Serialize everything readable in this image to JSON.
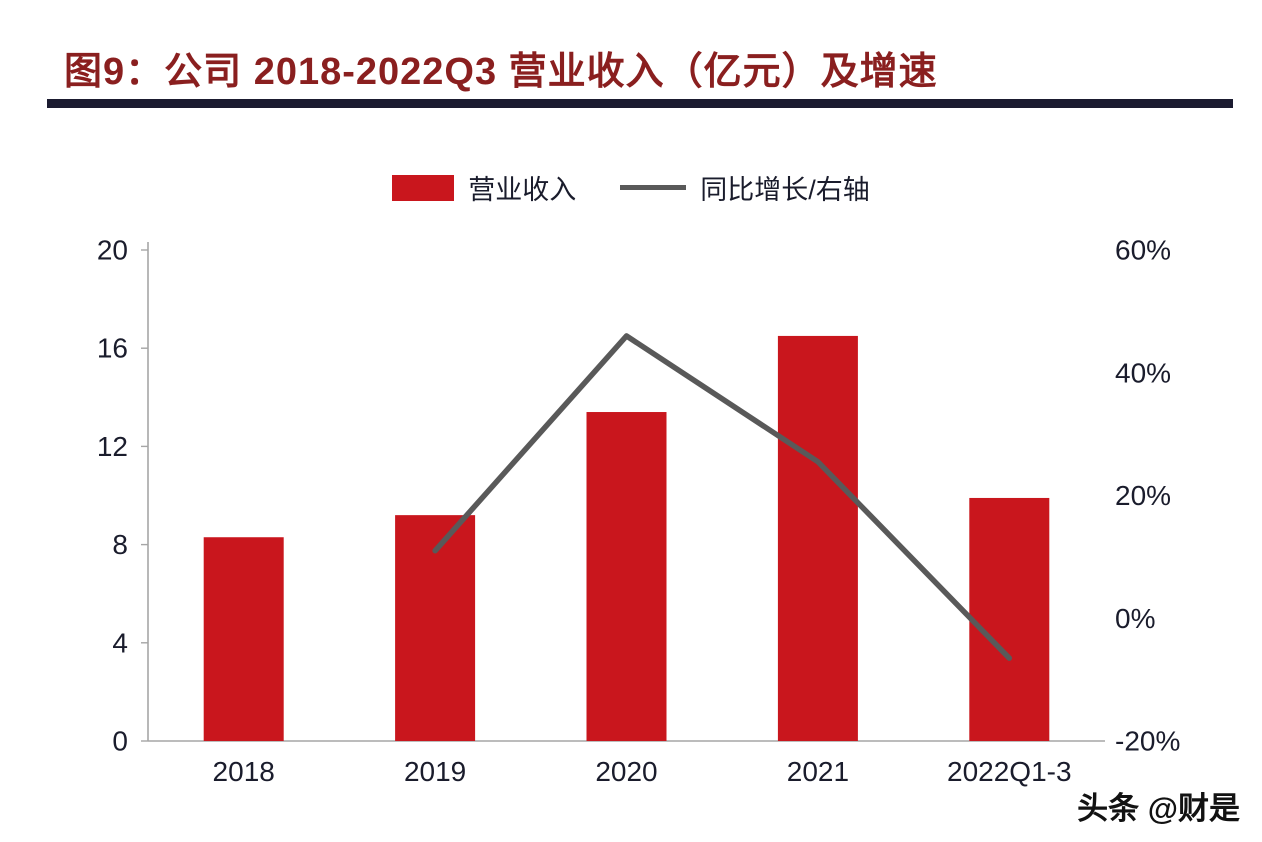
{
  "title": "图9：公司 2018-2022Q3 营业收入（亿元）及增速",
  "watermark": "头条 @财是",
  "colors": {
    "bar": "#c9161d",
    "line": "#595959",
    "title": "#8a1f1f",
    "rule": "#1b1b30",
    "axistext": "#1a1c2c",
    "axisline": "#a6a6a6"
  },
  "legend": [
    {
      "label": "营业收入",
      "swatch": "bar"
    },
    {
      "label": "同比增长/右轴",
      "swatch": "line"
    }
  ],
  "chart_data": {
    "type": "bar",
    "subtype": "bar+line combo, dual axis",
    "title": "图9：公司 2018-2022Q3 营业收入（亿元）及增速",
    "categories": [
      "2018",
      "2019",
      "2020",
      "2021",
      "2022Q1-3"
    ],
    "series": [
      {
        "name": "营业收入",
        "type": "bar",
        "axis": "left",
        "unit": "亿元",
        "values": [
          8.3,
          9.2,
          13.4,
          16.5,
          9.9
        ]
      },
      {
        "name": "同比增长/右轴",
        "type": "line",
        "axis": "right",
        "unit": "%",
        "values": [
          null,
          11,
          46,
          25.5,
          -6.5
        ]
      }
    ],
    "left_axis": {
      "min": 0,
      "max": 20,
      "tick_values": [
        0,
        4,
        8,
        12,
        16,
        20
      ],
      "tick_labels": [
        "0",
        "4",
        "8",
        "12",
        "16",
        "20"
      ]
    },
    "right_axis": {
      "min": -20,
      "max": 60,
      "tick_values": [
        -20,
        0,
        20,
        40,
        60
      ],
      "tick_labels": [
        "-20%",
        "0%",
        "20%",
        "40%",
        "60%"
      ]
    },
    "grid": false,
    "legend_position": "top-center"
  }
}
